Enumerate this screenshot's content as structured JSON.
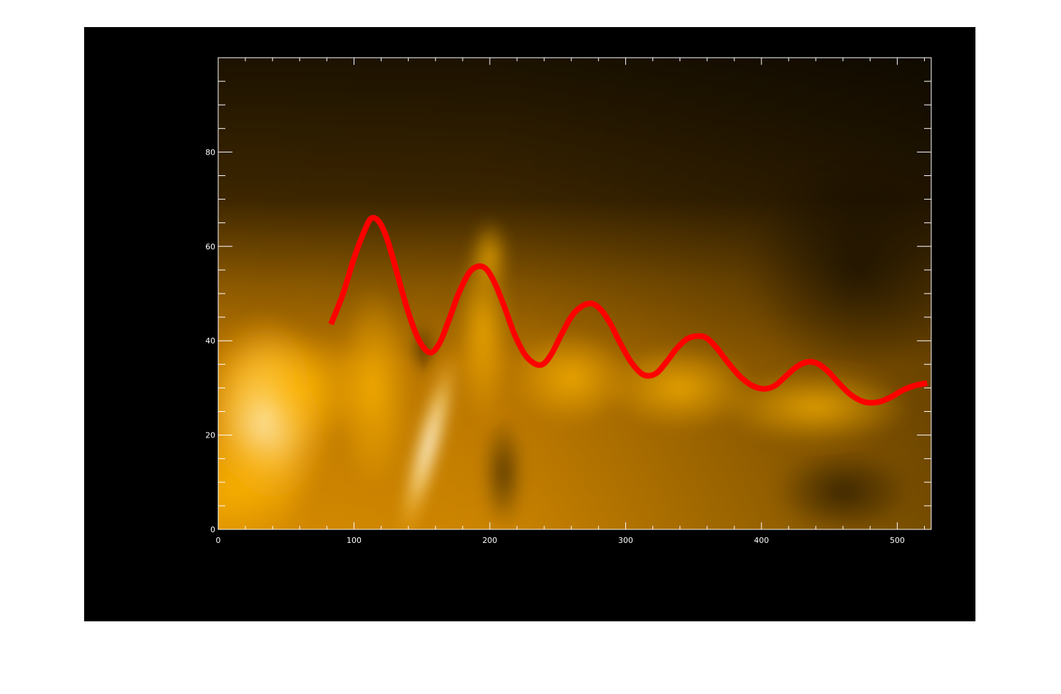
{
  "chart_data": {
    "type": "heatmap",
    "title": "",
    "xlabel": "",
    "ylabel": "",
    "xlim": [
      0,
      525
    ],
    "ylim": [
      0,
      100
    ],
    "x_ticks": [
      0,
      100,
      200,
      300,
      400,
      500
    ],
    "y_ticks": [
      0,
      20,
      40,
      60,
      80
    ],
    "x_tick_labels": [
      "0",
      "100",
      "200",
      "300",
      "400",
      "500"
    ],
    "y_tick_labels": [
      "0",
      "20",
      "40",
      "60",
      "80"
    ],
    "x_minor_step": 20,
    "y_minor_step": 5,
    "grid": false,
    "colormap": "solar orange (black to gold to white)",
    "colors": {
      "panel": "#000000",
      "axes": "#ffffff",
      "heat_dark": "#1a1000",
      "heat_mid": "#c88400",
      "heat_bright": "#ffb800",
      "heat_peak": "#fff6d8",
      "fit_line": "#ff0000"
    },
    "series": [
      {
        "type": "line",
        "x": [
          83,
          92,
          100,
          108,
          113,
          119,
          125,
          132,
          140,
          148,
          156,
          163,
          170,
          177,
          185,
          192,
          198,
          204,
          211,
          218,
          226,
          234,
          240,
          246,
          253,
          261,
          269,
          276,
          282,
          289,
          296,
          304,
          313,
          322,
          330,
          338,
          346,
          354,
          360,
          367,
          375,
          384,
          393,
          402,
          410,
          418,
          426,
          434,
          441,
          449,
          457,
          466,
          476,
          486,
          495,
          504,
          513,
          522
        ],
        "y": [
          43.5,
          50.0,
          57.5,
          63.5,
          66.0,
          65.0,
          61.0,
          54.0,
          46.0,
          40.0,
          37.5,
          39.5,
          44.5,
          50.0,
          54.5,
          55.8,
          55.0,
          52.0,
          47.0,
          41.5,
          37.0,
          35.0,
          35.2,
          37.5,
          41.5,
          45.5,
          47.5,
          47.8,
          46.5,
          43.5,
          39.5,
          35.5,
          32.8,
          33.0,
          35.5,
          38.5,
          40.5,
          41.0,
          40.5,
          38.5,
          35.5,
          32.5,
          30.5,
          29.8,
          30.5,
          32.5,
          34.5,
          35.5,
          35.2,
          33.5,
          31.0,
          28.5,
          27.0,
          27.0,
          28.0,
          29.5,
          30.5,
          31.0
        ]
      }
    ]
  }
}
